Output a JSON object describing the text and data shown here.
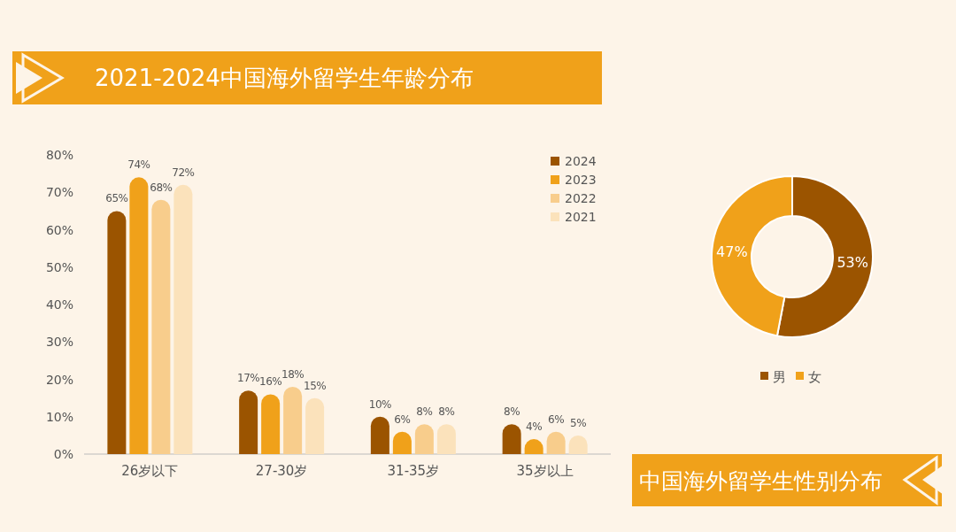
{
  "chart_data": [
    {
      "type": "bar",
      "title": "2021-2024中国海外留学生年龄分布",
      "categories": [
        "26岁以下",
        "27-30岁",
        "31-35岁",
        "35岁以上"
      ],
      "series": [
        {
          "name": "2024",
          "color": "#9b5400",
          "values": [
            65,
            17,
            10,
            8
          ],
          "value_labels": [
            "65%",
            "17%",
            "10%",
            "8%"
          ]
        },
        {
          "name": "2023",
          "color": "#f0a11a",
          "values": [
            74,
            16,
            6,
            4
          ],
          "value_labels": [
            "74%",
            "16%",
            "6%",
            "4%"
          ]
        },
        {
          "name": "2022",
          "color": "#f8cd8c",
          "values": [
            68,
            18,
            8,
            6
          ],
          "value_labels": [
            "68%",
            "18%",
            "8%",
            "6%"
          ]
        },
        {
          "name": "2021",
          "color": "#fbe2bb",
          "values": [
            72,
            15,
            8,
            5
          ],
          "value_labels": [
            "72%",
            "15%",
            "8%",
            "5%"
          ]
        }
      ],
      "ylim": [
        0,
        80
      ],
      "yticks": [
        {
          "value": 0,
          "label": "0%"
        },
        {
          "value": 10,
          "label": "10%"
        },
        {
          "value": 20,
          "label": "20%"
        },
        {
          "value": 30,
          "label": "30%"
        },
        {
          "value": 40,
          "label": "40%"
        },
        {
          "value": 50,
          "label": "50%"
        },
        {
          "value": 60,
          "label": "60%"
        },
        {
          "value": 70,
          "label": "70%"
        },
        {
          "value": 80,
          "label": "80%"
        }
      ],
      "legend": "top right"
    },
    {
      "type": "donut",
      "title": "中国海外留学生性别分布",
      "categories": [
        "男",
        "女"
      ],
      "values": [
        53,
        47
      ],
      "colors": [
        "#9b5400",
        "#f0a11a"
      ],
      "value_labels": [
        "53%",
        "47%"
      ],
      "legend": "bottom"
    }
  ]
}
